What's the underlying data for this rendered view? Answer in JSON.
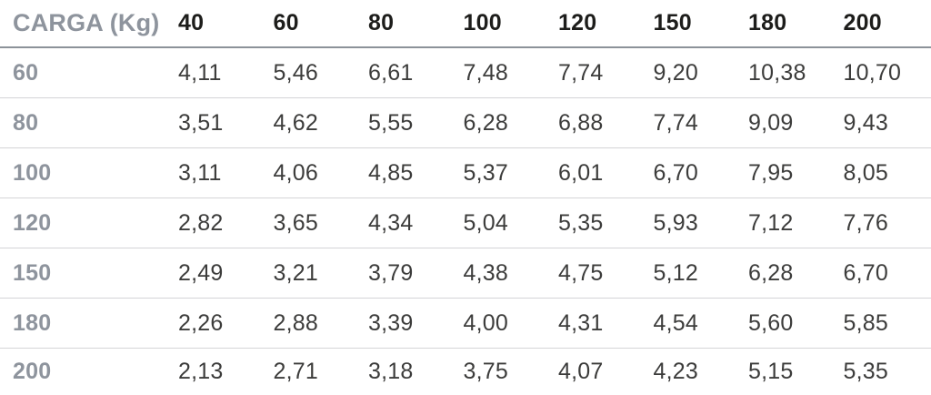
{
  "chart_data": {
    "type": "table",
    "header": {
      "corner_label": "CARGA (Kg)",
      "columns": [
        "40",
        "60",
        "80",
        "100",
        "120",
        "150",
        "180",
        "200"
      ]
    },
    "rows": [
      {
        "label": "60",
        "values": [
          "4,11",
          "5,46",
          "6,61",
          "7,48",
          "7,74",
          "9,20",
          "10,38",
          "10,70"
        ]
      },
      {
        "label": "80",
        "values": [
          "3,51",
          "4,62",
          "5,55",
          "6,28",
          "6,88",
          "7,74",
          "9,09",
          "9,43"
        ]
      },
      {
        "label": "100",
        "values": [
          "3,11",
          "4,06",
          "4,85",
          "5,37",
          "6,01",
          "6,70",
          "7,95",
          "8,05"
        ]
      },
      {
        "label": "120",
        "values": [
          "2,82",
          "3,65",
          "4,34",
          "5,04",
          "5,35",
          "5,93",
          "7,12",
          "7,76"
        ]
      },
      {
        "label": "150",
        "values": [
          "2,49",
          "3,21",
          "3,79",
          "4,38",
          "4,75",
          "5,12",
          "6,28",
          "6,70"
        ]
      },
      {
        "label": "180",
        "values": [
          "2,26",
          "2,88",
          "3,39",
          "4,00",
          "4,31",
          "4,54",
          "5,60",
          "5,85"
        ]
      },
      {
        "label": "200",
        "values": [
          "2,13",
          "2,71",
          "3,18",
          "3,75",
          "4,07",
          "4,23",
          "5,15",
          "5,35"
        ]
      }
    ]
  },
  "colors": {
    "label-gray": "#8e949d",
    "header-dark": "#1d1d1b",
    "value-dark": "#3c3c3b",
    "rule-dark": "#8c9299",
    "rule-light": "#d4d4d7",
    "bg": "#ffffff"
  }
}
